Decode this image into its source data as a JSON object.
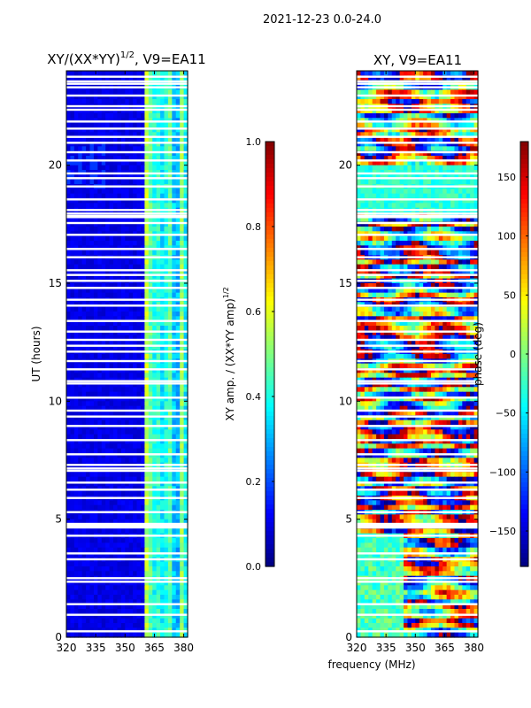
{
  "chart_data": [
    {
      "type": "heatmap",
      "suptitle": "2021-12-23 0.0-24.0",
      "title_main": "XY/(XX*YY)",
      "title_exp": "1/2",
      "title_tail": ", V9=EA11",
      "xlabel": "",
      "ylabel": "UT (hours)",
      "xlim": [
        320,
        382
      ],
      "ylim": [
        0,
        24
      ],
      "xticks": [
        320,
        335,
        350,
        365,
        380
      ],
      "yticks": [
        0,
        5,
        10,
        15,
        20
      ],
      "colorbar": {
        "label_main": "XY amp. / (XX*YY amp)",
        "label_exp": "1/2",
        "range": [
          0.0,
          1.0
        ],
        "ticks": [
          "0.0",
          "0.2",
          "0.4",
          "0.6",
          "0.8",
          "1.0"
        ],
        "tick_values": [
          0.0,
          0.2,
          0.4,
          0.6,
          0.8,
          1.0
        ]
      },
      "note": "low amplitude (~0.1) below 360 MHz, bright striped band (0.3-0.6) from ~361 to 382 MHz"
    },
    {
      "type": "heatmap",
      "title": "XY, V9=EA11",
      "xlabel": "frequency (MHz)",
      "ylabel": "",
      "xlim": [
        320,
        382
      ],
      "ylim": [
        0,
        24
      ],
      "xticks": [
        320,
        335,
        350,
        365,
        380
      ],
      "yticks": [
        0,
        5,
        10,
        15,
        20
      ],
      "colorbar": {
        "label": "phase (deg)",
        "range": [
          -180,
          180
        ],
        "ticks": [
          "−150",
          "−100",
          "−50",
          "0",
          "50",
          "100",
          "150"
        ],
        "tick_values": [
          -150,
          -100,
          -50,
          0,
          50,
          100,
          150
        ]
      },
      "note": "phase varies widely across all frequencies and times"
    }
  ],
  "flagged_hours": [
    0.25,
    0.95,
    1.4,
    2.35,
    2.5,
    3.3,
    3.55,
    4.3,
    4.65,
    4.72,
    4.8,
    5.3,
    5.9,
    6.25,
    6.55,
    7.05,
    7.15,
    7.3,
    7.75,
    8.35,
    8.95,
    9.35,
    9.6,
    10.15,
    10.75,
    10.85,
    11.35,
    11.7,
    12.1,
    12.35,
    12.6,
    12.95,
    13.4,
    14.05,
    14.3,
    14.8,
    15.1,
    15.35,
    15.55,
    16.1,
    16.45,
    17.05,
    17.55,
    17.8,
    17.85,
    17.95,
    18.1,
    18.55,
    19.1,
    19.45,
    19.65,
    20.2,
    20.55,
    20.95,
    21.2,
    21.55,
    21.85,
    22.35,
    22.5,
    22.95,
    23.3,
    23.45,
    23.55,
    23.75
  ]
}
